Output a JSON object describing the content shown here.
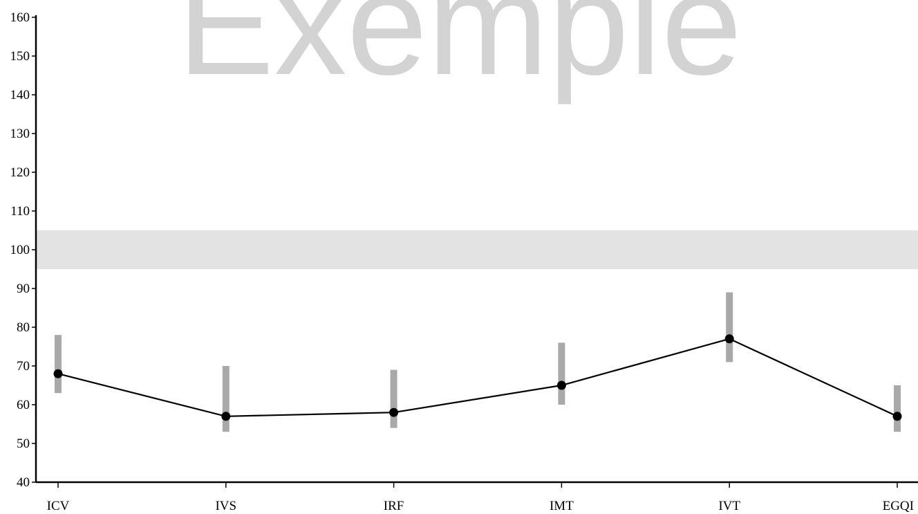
{
  "watermark": "Exemple",
  "colors": {
    "line": "#000000",
    "marker": "#000000",
    "error_bar": "#a9a9a9",
    "reference_band": "#e3e3e3",
    "watermark": "#d3d3d3"
  },
  "chart_data": {
    "type": "line",
    "categories": [
      "ICV",
      "IVS",
      "IRF",
      "IMT",
      "IVT",
      "EGQI"
    ],
    "series": [
      {
        "values": [
          68,
          57,
          58,
          65,
          77,
          57
        ],
        "ci_low": [
          63,
          53,
          54,
          60,
          71,
          53
        ],
        "ci_high": [
          78,
          70,
          69,
          76,
          89,
          65
        ]
      }
    ],
    "reference_band": [
      95,
      105
    ],
    "ylim": [
      40,
      160
    ],
    "yticks": [
      40,
      50,
      60,
      70,
      80,
      90,
      100,
      110,
      120,
      130,
      140,
      150,
      160
    ],
    "xlabel": "",
    "ylabel": "",
    "title": "",
    "grid": false,
    "legend": "none"
  }
}
